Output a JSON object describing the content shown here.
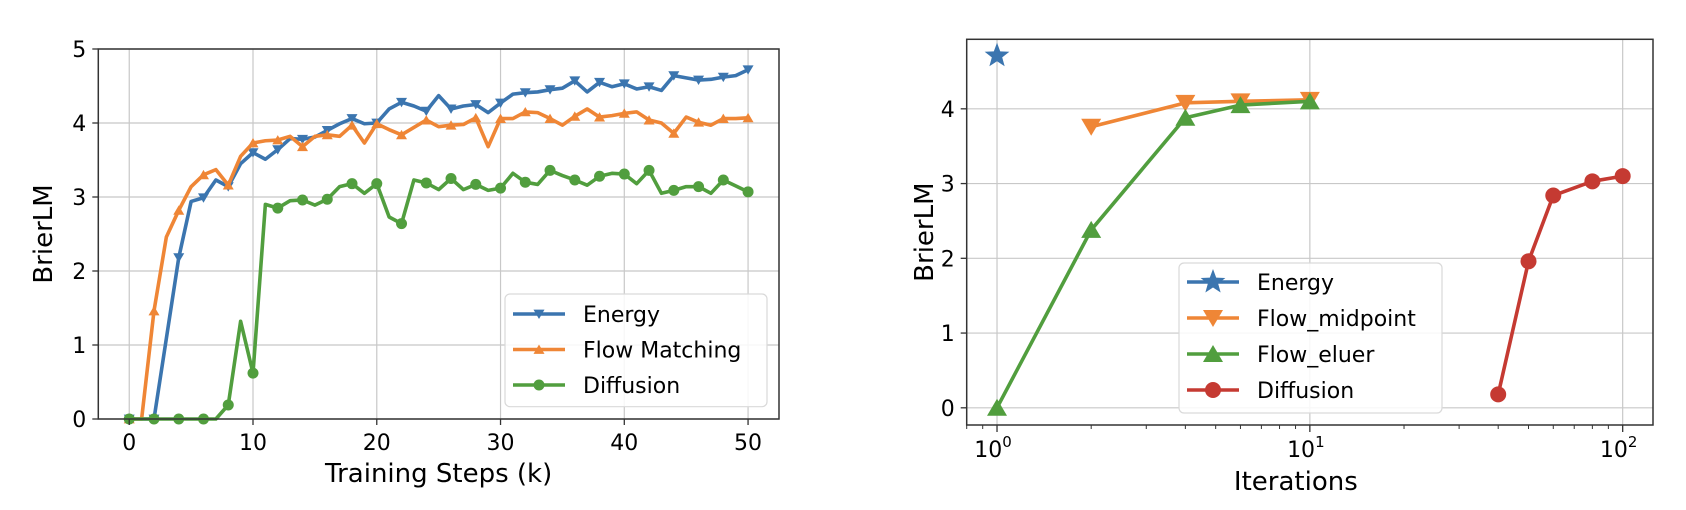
{
  "chart_data": [
    {
      "type": "line",
      "title": "",
      "xlabel": "Training Steps (k)",
      "ylabel": "BrierLM",
      "xlim": [
        -2.5,
        52.5
      ],
      "ylim": [
        0,
        5
      ],
      "xscale": "linear",
      "grid": true,
      "xticks": [
        0,
        10,
        20,
        30,
        40,
        50
      ],
      "xtick_labels": [
        "0",
        "10",
        "20",
        "30",
        "40",
        "50"
      ],
      "yticks": [
        0,
        1,
        2,
        3,
        4,
        5
      ],
      "ytick_labels": [
        "0",
        "1",
        "2",
        "3",
        "4",
        "5"
      ],
      "legend_position": "lower-right",
      "x": [
        0,
        1,
        2,
        3,
        4,
        5,
        6,
        7,
        8,
        9,
        10,
        11,
        12,
        13,
        14,
        15,
        16,
        17,
        18,
        19,
        20,
        21,
        22,
        23,
        24,
        25,
        26,
        27,
        28,
        29,
        30,
        31,
        32,
        33,
        34,
        35,
        36,
        37,
        38,
        39,
        40,
        41,
        42,
        43,
        44,
        45,
        46,
        47,
        48,
        49,
        50
      ],
      "marker_every": 2,
      "series": [
        {
          "name": "Energy",
          "color": "#3b75af",
          "marker": "triangle-down",
          "values": [
            0,
            0,
            0,
            1.09,
            2.18,
            2.94,
            2.99,
            3.23,
            3.14,
            3.45,
            3.6,
            3.51,
            3.64,
            3.79,
            3.78,
            3.81,
            3.9,
            3.99,
            4.06,
            3.99,
            4.0,
            4.19,
            4.28,
            4.23,
            4.16,
            4.37,
            4.19,
            4.23,
            4.25,
            4.14,
            4.27,
            4.39,
            4.41,
            4.42,
            4.45,
            4.47,
            4.57,
            4.42,
            4.55,
            4.49,
            4.53,
            4.46,
            4.49,
            4.44,
            4.64,
            4.61,
            4.58,
            4.59,
            4.62,
            4.64,
            4.72
          ]
        },
        {
          "name": "Flow Matching",
          "color": "#ef8636",
          "marker": "triangle-up",
          "values": [
            0,
            0,
            1.46,
            2.46,
            2.82,
            3.14,
            3.3,
            3.37,
            3.16,
            3.55,
            3.73,
            3.76,
            3.77,
            3.82,
            3.68,
            3.82,
            3.84,
            3.82,
            3.97,
            3.73,
            3.99,
            3.91,
            3.84,
            3.94,
            4.04,
            3.95,
            3.97,
            3.98,
            4.07,
            3.68,
            4.06,
            4.06,
            4.15,
            4.14,
            4.06,
            3.97,
            4.09,
            4.19,
            4.08,
            4.1,
            4.13,
            4.15,
            4.04,
            4.0,
            3.86,
            4.08,
            4.01,
            3.97,
            4.06,
            4.06,
            4.07
          ]
        },
        {
          "name": "Diffusion",
          "color": "#519e3e",
          "marker": "circle",
          "values": [
            0,
            0,
            0,
            0,
            0,
            0,
            0,
            0,
            0.19,
            1.32,
            0.62,
            2.9,
            2.85,
            2.95,
            2.96,
            2.89,
            2.97,
            3.14,
            3.18,
            3.05,
            3.18,
            2.73,
            2.64,
            3.23,
            3.19,
            3.1,
            3.25,
            3.1,
            3.17,
            3.09,
            3.12,
            3.32,
            3.2,
            3.17,
            3.36,
            3.29,
            3.23,
            3.16,
            3.28,
            3.32,
            3.31,
            3.18,
            3.36,
            3.05,
            3.09,
            3.14,
            3.14,
            3.05,
            3.23,
            3.15,
            3.07
          ]
        }
      ]
    },
    {
      "type": "line",
      "title": "",
      "xlabel": "Iterations",
      "ylabel": "BrierLM",
      "xscale": "log",
      "xlim": [
        0.8,
        125
      ],
      "ylim": [
        -0.23,
        4.93
      ],
      "grid": true,
      "xticks": [
        1,
        10,
        100
      ],
      "xtick_labels": [
        {
          "base": "10",
          "exp": "0"
        },
        {
          "base": "10",
          "exp": "1"
        },
        {
          "base": "10",
          "exp": "2"
        }
      ],
      "yticks": [
        0,
        1,
        2,
        3,
        4
      ],
      "ytick_labels": [
        "0",
        "1",
        "2",
        "3",
        "4"
      ],
      "legend_position": "lower-center",
      "series": [
        {
          "name": "Energy",
          "color": "#3b75af",
          "marker": "star",
          "x": [
            1
          ],
          "values": [
            4.71
          ]
        },
        {
          "name": "Flow_midpoint",
          "color": "#ef8636",
          "marker": "triangle-down",
          "x": [
            2,
            4,
            6,
            10
          ],
          "values": [
            3.76,
            4.08,
            4.1,
            4.12
          ]
        },
        {
          "name": "Flow_eluer",
          "color": "#519e3e",
          "marker": "triangle-up",
          "x": [
            1,
            2,
            4,
            6,
            10
          ],
          "values": [
            0,
            2.38,
            3.88,
            4.05,
            4.1
          ]
        },
        {
          "name": "Diffusion",
          "color": "#c53a32",
          "marker": "circle",
          "x": [
            40,
            50,
            60,
            80,
            100
          ],
          "values": [
            0.18,
            1.96,
            2.84,
            3.03,
            3.1
          ]
        }
      ]
    }
  ]
}
